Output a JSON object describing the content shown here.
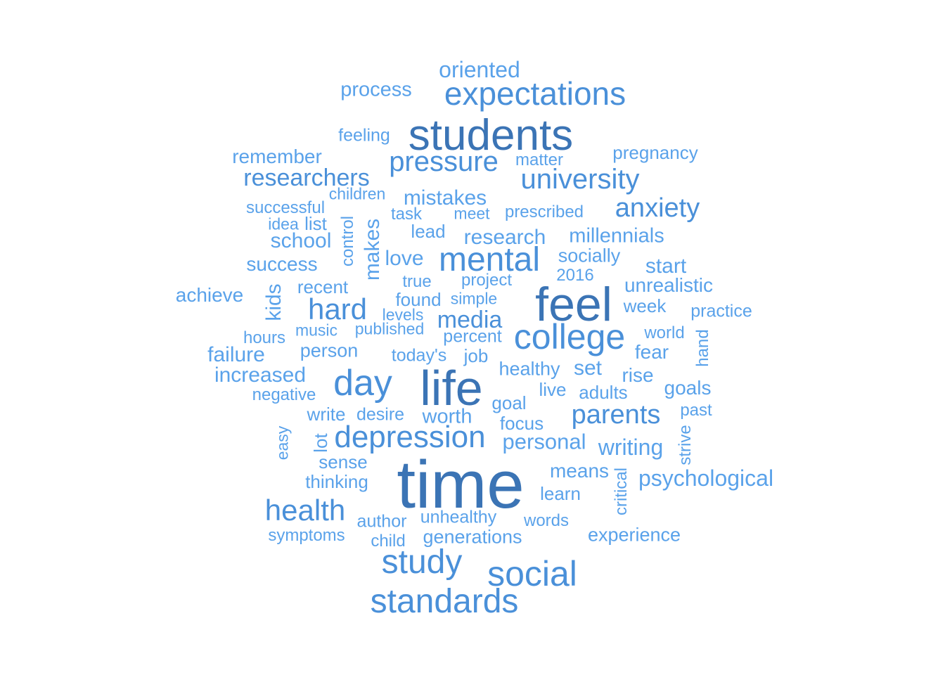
{
  "colors": {
    "large": "#3b74b5",
    "medium": "#4a90d9",
    "small": "#5aa2ea",
    "background": "#ffffff"
  },
  "words": [
    {
      "text": "time",
      "weight": 96
    },
    {
      "text": "feel",
      "weight": 68
    },
    {
      "text": "life",
      "weight": 70
    },
    {
      "text": "students",
      "weight": 62
    },
    {
      "text": "expectations",
      "weight": 46
    },
    {
      "text": "college",
      "weight": 50
    },
    {
      "text": "day",
      "weight": 52
    },
    {
      "text": "social",
      "weight": 50
    },
    {
      "text": "standards",
      "weight": 48
    },
    {
      "text": "study",
      "weight": 48
    },
    {
      "text": "mental",
      "weight": 48
    },
    {
      "text": "depression",
      "weight": 44
    },
    {
      "text": "health",
      "weight": 42
    },
    {
      "text": "hard",
      "weight": 42
    },
    {
      "text": "pressure",
      "weight": 40
    },
    {
      "text": "university",
      "weight": 40
    },
    {
      "text": "anxiety",
      "weight": 38
    },
    {
      "text": "parents",
      "weight": 38
    },
    {
      "text": "media",
      "weight": 34
    },
    {
      "text": "researchers",
      "weight": 34
    },
    {
      "text": "oriented",
      "weight": 32
    },
    {
      "text": "research",
      "weight": 30
    },
    {
      "text": "mistakes",
      "weight": 30
    },
    {
      "text": "writing",
      "weight": 32
    },
    {
      "text": "psychological",
      "weight": 32
    },
    {
      "text": "personal",
      "weight": 31
    },
    {
      "text": "makes",
      "weight": 30
    },
    {
      "text": "kids",
      "weight": 30
    },
    {
      "text": "school",
      "weight": 30
    },
    {
      "text": "love",
      "weight": 30
    },
    {
      "text": "start",
      "weight": 30
    },
    {
      "text": "increased",
      "weight": 30
    },
    {
      "text": "failure",
      "weight": 30
    },
    {
      "text": "set",
      "weight": 30
    },
    {
      "text": "worth",
      "weight": 29
    },
    {
      "text": "millennials",
      "weight": 29
    },
    {
      "text": "process",
      "weight": 29
    },
    {
      "text": "remember",
      "weight": 28
    },
    {
      "text": "success",
      "weight": 28
    },
    {
      "text": "achieve",
      "weight": 28
    },
    {
      "text": "unrealistic",
      "weight": 28
    },
    {
      "text": "fear",
      "weight": 28
    },
    {
      "text": "goals",
      "weight": 28
    },
    {
      "text": "rise",
      "weight": 28
    },
    {
      "text": "means",
      "weight": 28
    },
    {
      "text": "experience",
      "weight": 27
    },
    {
      "text": "healthy",
      "weight": 27
    },
    {
      "text": "generations",
      "weight": 27
    },
    {
      "text": "socially",
      "weight": 27
    },
    {
      "text": "person",
      "weight": 27
    },
    {
      "text": "pregnancy",
      "weight": 26
    },
    {
      "text": "lead",
      "weight": 26
    },
    {
      "text": "recent",
      "weight": 26
    },
    {
      "text": "sense",
      "weight": 26
    },
    {
      "text": "thinking",
      "weight": 26
    },
    {
      "text": "learn",
      "weight": 26
    },
    {
      "text": "week",
      "weight": 26
    },
    {
      "text": "live",
      "weight": 26
    },
    {
      "text": "adults",
      "weight": 26
    },
    {
      "text": "goal",
      "weight": 26
    },
    {
      "text": "focus",
      "weight": 26
    },
    {
      "text": "found",
      "weight": 26
    },
    {
      "text": "list",
      "weight": 26
    },
    {
      "text": "job",
      "weight": 26
    },
    {
      "text": "write",
      "weight": 26
    },
    {
      "text": "lot",
      "weight": 26
    },
    {
      "text": "control",
      "weight": 24
    },
    {
      "text": "feeling",
      "weight": 25
    },
    {
      "text": "today's",
      "weight": 25
    },
    {
      "text": "desire",
      "weight": 25
    },
    {
      "text": "percent",
      "weight": 25
    },
    {
      "text": "author",
      "weight": 25
    },
    {
      "text": "unhealthy",
      "weight": 25
    },
    {
      "text": "words",
      "weight": 24
    },
    {
      "text": "practice",
      "weight": 25
    },
    {
      "text": "past",
      "weight": 24
    },
    {
      "text": "matter",
      "weight": 24
    },
    {
      "text": "prescribed",
      "weight": 24
    },
    {
      "text": "successful",
      "weight": 24
    },
    {
      "text": "task",
      "weight": 24
    },
    {
      "text": "true",
      "weight": 24
    },
    {
      "text": "project",
      "weight": 24
    },
    {
      "text": "2016",
      "weight": 24
    },
    {
      "text": "negative",
      "weight": 24
    },
    {
      "text": "hours",
      "weight": 24
    },
    {
      "text": "world",
      "weight": 24
    },
    {
      "text": "hand",
      "weight": 24
    },
    {
      "text": "strive",
      "weight": 24
    },
    {
      "text": "critical",
      "weight": 24
    },
    {
      "text": "symptoms",
      "weight": 24
    },
    {
      "text": "child",
      "weight": 24
    },
    {
      "text": "easy",
      "weight": 23
    },
    {
      "text": "children",
      "weight": 23
    },
    {
      "text": "meet",
      "weight": 23
    },
    {
      "text": "idea",
      "weight": 23
    },
    {
      "text": "music",
      "weight": 23
    },
    {
      "text": "published",
      "weight": 23
    },
    {
      "text": "levels",
      "weight": 23
    },
    {
      "text": "simple",
      "weight": 23
    }
  ]
}
